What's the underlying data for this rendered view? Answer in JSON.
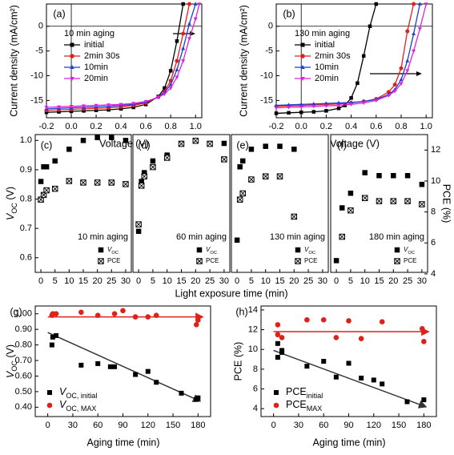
{
  "chart_data": [
    {
      "type": "line",
      "panel_label": "(a)",
      "xlabel": "Voltage (V)",
      "ylabel": "Current density (mA/cm²)",
      "legend_title": "10 min aging",
      "xlim": [
        -0.2,
        1.05
      ],
      "xticks": [
        -0.2,
        {
          "value": 0,
          "label": "0.0"
        },
        0.2,
        0.4,
        0.6,
        0.8,
        {
          "value": 1,
          "label": "1.0"
        }
      ],
      "ylim": [
        -18.5,
        4.5
      ],
      "yticks": [
        0,
        -5,
        -10,
        -15
      ],
      "series": [
        {
          "name": "initial",
          "color": "#000000",
          "marker": "square",
          "x": [
            -0.2,
            -0.1,
            0,
            0.1,
            0.2,
            0.3,
            0.4,
            0.5,
            0.6,
            0.7,
            0.75,
            0.8,
            0.85,
            0.9
          ],
          "values": [
            -17.4,
            -17.3,
            -17.2,
            -17.1,
            -17.0,
            -16.9,
            -16.7,
            -16.4,
            -15.8,
            -14.2,
            -12.5,
            -9.0,
            -3.0,
            4.5
          ]
        },
        {
          "name": "2min 30s",
          "color": "#e0201b",
          "marker": "circle",
          "x": [
            -0.2,
            -0.1,
            0,
            0.1,
            0.2,
            0.3,
            0.4,
            0.5,
            0.6,
            0.7,
            0.75,
            0.8,
            0.85,
            0.9,
            0.95
          ],
          "values": [
            -17.0,
            -16.9,
            -16.8,
            -16.7,
            -16.6,
            -16.5,
            -16.3,
            -16.0,
            -15.5,
            -14.3,
            -13.2,
            -11.0,
            -7.0,
            -1.5,
            4.5
          ]
        },
        {
          "name": "10min",
          "color": "#1f3fd0",
          "marker": "triangle-up",
          "x": [
            -0.2,
            -0.1,
            0,
            0.1,
            0.2,
            0.3,
            0.4,
            0.5,
            0.6,
            0.7,
            0.75,
            0.8,
            0.85,
            0.9,
            0.95,
            1.0
          ],
          "values": [
            -16.7,
            -16.6,
            -16.5,
            -16.4,
            -16.3,
            -16.2,
            -16.0,
            -15.8,
            -15.3,
            -14.3,
            -13.4,
            -11.8,
            -8.8,
            -4.5,
            0.5,
            4.5
          ]
        },
        {
          "name": "20min",
          "color": "#e020e0",
          "marker": "triangle-down",
          "x": [
            -0.2,
            -0.1,
            0,
            0.1,
            0.2,
            0.3,
            0.4,
            0.5,
            0.6,
            0.7,
            0.75,
            0.8,
            0.85,
            0.9,
            0.95,
            1.0,
            1.03
          ],
          "values": [
            -16.4,
            -16.3,
            -16.2,
            -16.1,
            -16.0,
            -15.9,
            -15.8,
            -15.6,
            -15.2,
            -14.4,
            -13.7,
            -12.5,
            -10.3,
            -7.0,
            -2.5,
            1.5,
            4.5
          ]
        }
      ]
    },
    {
      "type": "line",
      "panel_label": "(b)",
      "xlabel": "Voltage (V)",
      "ylabel": "Current density (mA/cm²)",
      "legend_title": "130 min aging",
      "xlim": [
        -0.2,
        1.05
      ],
      "xticks": [
        -0.2,
        {
          "value": 0,
          "label": "0.0"
        },
        0.2,
        0.4,
        0.6,
        0.8,
        {
          "value": 1,
          "label": "1.0"
        }
      ],
      "ylim": [
        -18.5,
        4.5
      ],
      "yticks": [
        0,
        -5,
        -10,
        -15
      ],
      "series": [
        {
          "name": "initial",
          "color": "#000000",
          "marker": "square",
          "x": [
            -0.2,
            -0.1,
            0,
            0.1,
            0.2,
            0.3,
            0.35,
            0.4,
            0.45,
            0.5,
            0.55,
            0.6
          ],
          "values": [
            -17.6,
            -17.5,
            -17.4,
            -17.3,
            -17.1,
            -16.6,
            -16.0,
            -14.5,
            -11.5,
            -6.0,
            0,
            4.5
          ]
        },
        {
          "name": "2min 30s",
          "color": "#e0201b",
          "marker": "circle",
          "x": [
            -0.2,
            -0.1,
            0,
            0.1,
            0.2,
            0.3,
            0.4,
            0.5,
            0.6,
            0.7,
            0.75,
            0.8,
            0.85,
            0.9
          ],
          "values": [
            -16.2,
            -16.1,
            -16.0,
            -15.9,
            -15.8,
            -15.7,
            -15.5,
            -15.2,
            -14.7,
            -13.3,
            -11.8,
            -8.5,
            -1.0,
            4.5
          ]
        },
        {
          "name": "10min",
          "color": "#1f3fd0",
          "marker": "triangle-up",
          "x": [
            -0.2,
            -0.1,
            0,
            0.1,
            0.2,
            0.3,
            0.4,
            0.5,
            0.6,
            0.7,
            0.75,
            0.8,
            0.85,
            0.9,
            0.95
          ],
          "values": [
            -16.0,
            -15.9,
            -15.8,
            -15.7,
            -15.6,
            -15.5,
            -15.4,
            -15.2,
            -14.8,
            -13.8,
            -12.8,
            -10.8,
            -7.0,
            -1.5,
            4.5
          ]
        },
        {
          "name": "20min",
          "color": "#e020e0",
          "marker": "triangle-down",
          "x": [
            -0.2,
            -0.1,
            0,
            0.1,
            0.2,
            0.3,
            0.4,
            0.5,
            0.6,
            0.7,
            0.75,
            0.8,
            0.85,
            0.9,
            0.95,
            1.0
          ],
          "values": [
            -16.5,
            -16.4,
            -16.3,
            -16.2,
            -16.1,
            -16.0,
            -15.8,
            -15.5,
            -15.0,
            -14.0,
            -13.1,
            -11.6,
            -9.0,
            -5.0,
            -0.5,
            4.5
          ]
        }
      ]
    },
    {
      "type": "scatter",
      "panel_label": "(c)",
      "xlabel": "Light exposure time (min)",
      "ylabel": [
        "V",
        "OC",
        " (V)"
      ],
      "annotation": "10 min aging",
      "xlim": [
        -2,
        32
      ],
      "xticks": [
        0,
        5,
        10,
        15,
        20,
        25,
        30
      ],
      "ylim": [
        0.55,
        1.02
      ],
      "yticks": [
        0.6,
        0.7,
        0.8,
        0.9,
        {
          "value": 1,
          "label": "1.0"
        }
      ],
      "y2lim": [
        4.1,
        13.0
      ],
      "series": [
        {
          "name": [
            "V",
            "OC"
          ],
          "color": "#000000",
          "marker": "square",
          "x": [
            0,
            1,
            2,
            5,
            10,
            15,
            20,
            25,
            30
          ],
          "values": [
            0.86,
            0.91,
            0.91,
            0.93,
            0.97,
            1.0,
            1.01,
            1.01,
            1.0
          ]
        },
        {
          "name": "PCE",
          "color": "#000000",
          "marker": "crossed",
          "axis": "y2",
          "x": [
            0,
            1,
            2,
            5,
            10,
            15,
            20,
            25,
            30
          ],
          "values": [
            8.8,
            9.1,
            9.4,
            9.5,
            10.0,
            9.9,
            9.9,
            9.9,
            9.8
          ]
        }
      ]
    },
    {
      "type": "scatter",
      "panel_label": "(d)",
      "annotation": "60 min aging",
      "xlim": [
        -2,
        32
      ],
      "xticks": [
        0,
        5,
        10,
        15,
        20,
        25,
        30
      ],
      "ylim": [
        0.55,
        1.02
      ],
      "y2lim": [
        4.1,
        13.0
      ],
      "series": [
        {
          "name": [
            "V",
            "OC"
          ],
          "color": "#000000",
          "marker": "square",
          "x": [
            0,
            1,
            2,
            5,
            10,
            15,
            20,
            25,
            30
          ],
          "values": [
            0.69,
            0.86,
            0.89,
            0.93,
            0.95,
            0.99,
            1.0,
            0.99,
            0.99
          ]
        },
        {
          "name": "PCE",
          "color": "#000000",
          "marker": "crossed",
          "axis": "y2",
          "x": [
            0,
            1,
            2,
            5,
            10,
            15,
            20,
            25,
            30
          ],
          "values": [
            7.2,
            9.7,
            10.3,
            10.9,
            11.5,
            12.4,
            12.6,
            12.4,
            11.4
          ]
        }
      ]
    },
    {
      "type": "scatter",
      "panel_label": "(e)",
      "annotation": "130 min aging",
      "xlim": [
        -2,
        32
      ],
      "xticks": [
        0,
        5,
        10,
        15,
        20,
        25,
        30
      ],
      "ylim": [
        0.55,
        1.02
      ],
      "y2lim": [
        4.1,
        13.0
      ],
      "series": [
        {
          "name": [
            "V",
            "OC"
          ],
          "color": "#000000",
          "marker": "square",
          "x": [
            0,
            1,
            2,
            5,
            10,
            15,
            20
          ],
          "values": [
            0.66,
            0.91,
            0.93,
            0.97,
            0.98,
            0.98,
            0.97
          ]
        },
        {
          "name": "PCE",
          "color": "#000000",
          "marker": "crossed",
          "axis": "y2",
          "x": [
            1,
            2,
            5,
            10,
            15,
            20
          ],
          "values": [
            8.8,
            9.2,
            10.1,
            10.3,
            10.3,
            7.7
          ]
        }
      ]
    },
    {
      "type": "scatter",
      "panel_label": "(f)",
      "annotation": "180 min aging",
      "y2label": "PCE (%)",
      "xlim": [
        -2,
        32
      ],
      "xticks": [
        0,
        5,
        10,
        15,
        20,
        25,
        30
      ],
      "ylim": [
        0.55,
        1.02
      ],
      "y2lim": [
        4.1,
        13.0
      ],
      "y2ticks": [
        4,
        6,
        8,
        10,
        12
      ],
      "series": [
        {
          "name": [
            "V",
            "OC"
          ],
          "color": "#000000",
          "marker": "square",
          "x": [
            0,
            2,
            5,
            10,
            15,
            20,
            25,
            30
          ],
          "values": [
            0.59,
            0.77,
            0.82,
            0.89,
            0.88,
            0.88,
            0.88,
            0.85
          ]
        },
        {
          "name": "PCE",
          "color": "#000000",
          "marker": "crossed",
          "axis": "y2",
          "x": [
            2,
            5,
            10,
            15,
            20,
            25,
            30
          ],
          "values": [
            6.4,
            8.1,
            8.9,
            8.7,
            8.7,
            8.7,
            8.5
          ]
        }
      ]
    },
    {
      "type": "scatter",
      "panel_label": "(g)",
      "xlabel": "Aging time (min)",
      "ylabel": [
        "V",
        "OC",
        " (V)"
      ],
      "xlim": [
        -15,
        195
      ],
      "xticks": [
        0,
        30,
        60,
        90,
        120,
        150,
        180
      ],
      "ylim": [
        0.34,
        1.05
      ],
      "yticks": [
        {
          "value": 0.4,
          "label": "0.40"
        },
        {
          "value": 0.5,
          "label": "0.50"
        },
        {
          "value": 0.6,
          "label": "0.60"
        },
        {
          "value": 0.7,
          "label": "0.70"
        },
        {
          "value": 0.8,
          "label": "0.80"
        },
        {
          "value": 0.9,
          "label": "0.90"
        },
        {
          "value": 1,
          "label": "1.00"
        }
      ],
      "series": [
        {
          "name": [
            "V",
            "OC, initial"
          ],
          "color": "#000000",
          "marker": "square",
          "x": [
            5,
            6,
            10,
            40,
            60,
            75,
            80,
            105,
            120,
            130,
            160,
            178,
            180
          ],
          "values": [
            0.8,
            0.85,
            0.86,
            0.67,
            0.68,
            0.66,
            0.66,
            0.61,
            0.63,
            0.56,
            0.49,
            0.45,
            0.46
          ]
        },
        {
          "name": [
            "V",
            "OC, MAX"
          ],
          "color": "#e0201b",
          "marker": "circle",
          "x": [
            5,
            6,
            10,
            40,
            60,
            80,
            90,
            105,
            120,
            130,
            178,
            180
          ],
          "values": [
            0.99,
            1.0,
            1.0,
            1.01,
            0.99,
            1.0,
            1.02,
            0.98,
            0.98,
            0.99,
            0.93,
            0.96
          ]
        }
      ],
      "fits": [
        {
          "color": "#333333",
          "x": [
            0,
            182
          ],
          "values": [
            0.88,
            0.44
          ]
        },
        {
          "color": "#e0201b",
          "x": [
            0,
            185
          ],
          "values": [
            0.98,
            0.98
          ]
        }
      ]
    },
    {
      "type": "scatter",
      "panel_label": "(h)",
      "xlabel": "Aging time (min)",
      "ylabel": "PCE (%)",
      "xlim": [
        -15,
        195
      ],
      "xticks": [
        0,
        30,
        60,
        90,
        120,
        150,
        180
      ],
      "ylim": [
        3.2,
        14.4
      ],
      "yticks": [
        4,
        6,
        8,
        10,
        12,
        14
      ],
      "series": [
        {
          "name": [
            "PCE",
            "initial"
          ],
          "color": "#000000",
          "marker": "square",
          "x": [
            5,
            5,
            10,
            10,
            40,
            60,
            75,
            90,
            105,
            120,
            130,
            160,
            180
          ],
          "values": [
            10.6,
            9.2,
            9.7,
            9.9,
            8.3,
            8.8,
            7.2,
            8.6,
            7.1,
            6.9,
            6.5,
            4.7,
            4.9
          ]
        },
        {
          "name": [
            "PCE",
            "MAX"
          ],
          "color": "#e0201b",
          "marker": "circle",
          "x": [
            5,
            5,
            10,
            40,
            60,
            75,
            90,
            105,
            130,
            178,
            180,
            180
          ],
          "values": [
            12.5,
            11.5,
            11.2,
            13.0,
            13.0,
            11.2,
            12.9,
            11.1,
            12.8,
            12.1,
            11.8,
            10.8
          ]
        }
      ],
      "fits": [
        {
          "color": "#333333",
          "x": [
            0,
            182
          ],
          "values": [
            9.9,
            4.2
          ]
        },
        {
          "color": "#e0201b",
          "x": [
            0,
            185
          ],
          "values": [
            11.8,
            11.8
          ]
        }
      ]
    }
  ]
}
